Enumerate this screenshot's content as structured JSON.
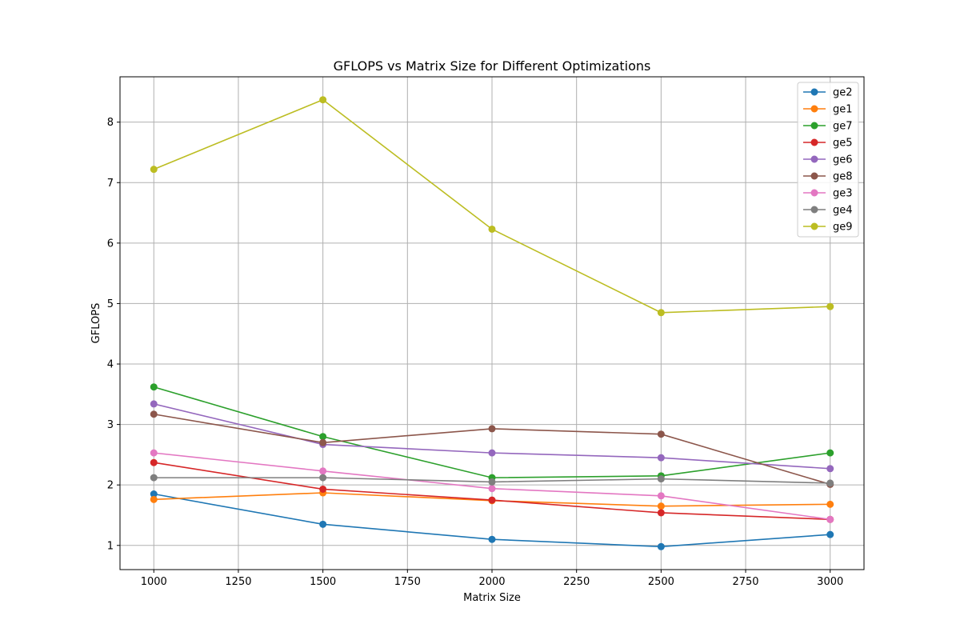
{
  "chart_data": {
    "type": "line",
    "title": "GFLOPS vs Matrix Size for Different Optimizations",
    "xlabel": "Matrix Size",
    "ylabel": "GFLOPS",
    "x": [
      1000,
      1500,
      2000,
      2500,
      3000
    ],
    "xlim": [
      900,
      3100
    ],
    "ylim": [
      0.6,
      8.75
    ],
    "xticks": [
      1000,
      1250,
      1500,
      1750,
      2000,
      2250,
      2500,
      2750,
      3000
    ],
    "yticks": [
      1,
      2,
      3,
      4,
      5,
      6,
      7,
      8
    ],
    "grid": true,
    "legend_position": "top-right",
    "series": [
      {
        "name": "ge2",
        "color": "#1f77b4",
        "values": [
          1.85,
          1.35,
          1.1,
          0.98,
          1.18
        ]
      },
      {
        "name": "ge1",
        "color": "#ff7f0e",
        "values": [
          1.76,
          1.87,
          1.74,
          1.65,
          1.68
        ]
      },
      {
        "name": "ge7",
        "color": "#2ca02c",
        "values": [
          3.62,
          2.8,
          2.12,
          2.15,
          2.53
        ]
      },
      {
        "name": "ge5",
        "color": "#d62728",
        "values": [
          2.37,
          1.93,
          1.75,
          1.54,
          1.43
        ]
      },
      {
        "name": "ge6",
        "color": "#9467bd",
        "values": [
          3.34,
          2.67,
          2.53,
          2.45,
          2.27
        ]
      },
      {
        "name": "ge8",
        "color": "#8c564b",
        "values": [
          3.17,
          2.7,
          2.93,
          2.84,
          2.01
        ]
      },
      {
        "name": "ge3",
        "color": "#e377c2",
        "values": [
          2.53,
          2.23,
          1.94,
          1.82,
          1.43
        ]
      },
      {
        "name": "ge4",
        "color": "#7f7f7f",
        "values": [
          2.12,
          2.12,
          2.05,
          2.1,
          2.03
        ]
      },
      {
        "name": "ge9",
        "color": "#bcbd22",
        "values": [
          7.22,
          8.37,
          6.23,
          4.85,
          4.95
        ]
      }
    ]
  }
}
